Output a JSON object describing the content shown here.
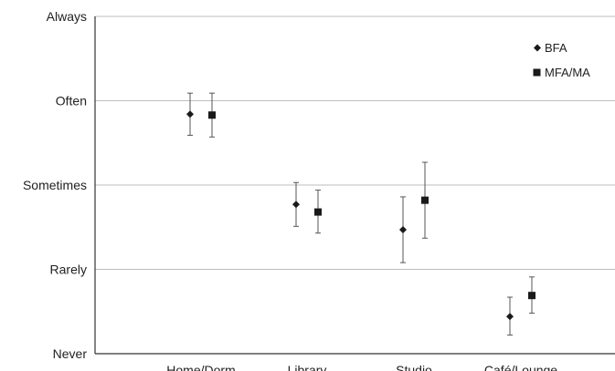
{
  "chart_data": {
    "type": "scatter",
    "title": "",
    "xlabel": "",
    "ylabel": "",
    "categories": [
      "Home/Dorm",
      "Library",
      "Studio",
      "Café/Lounge"
    ],
    "y_tick_labels": [
      "Never",
      "Rarely",
      "Sometimes",
      "Often",
      "Always"
    ],
    "ylim": [
      1,
      5
    ],
    "grid": true,
    "legend_position": "top-right",
    "series": [
      {
        "name": "BFA",
        "marker": "diamond",
        "values": [
          3.84,
          2.77,
          2.47,
          1.44
        ],
        "err_low": [
          3.59,
          2.51,
          2.08,
          1.22
        ],
        "err_high": [
          4.09,
          3.03,
          2.86,
          1.67
        ]
      },
      {
        "name": "MFA/MA",
        "marker": "square",
        "values": [
          3.83,
          2.68,
          2.82,
          1.69
        ],
        "err_low": [
          3.57,
          2.43,
          2.37,
          1.48
        ],
        "err_high": [
          4.09,
          2.94,
          3.27,
          1.91
        ]
      }
    ],
    "colors": {
      "marker": "#1a1a1a",
      "error_bar": "#555555",
      "grid": "#bdbdbd",
      "axis": "#333333"
    }
  }
}
